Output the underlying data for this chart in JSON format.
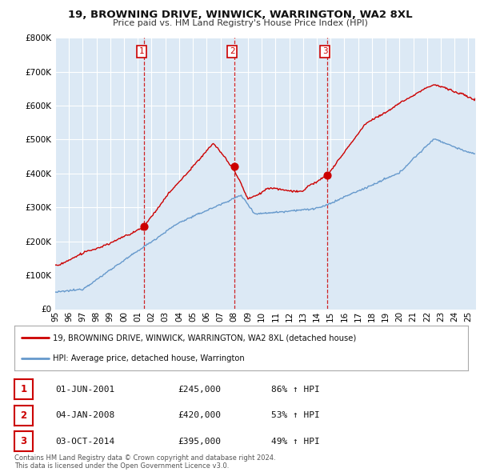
{
  "title": "19, BROWNING DRIVE, WINWICK, WARRINGTON, WA2 8XL",
  "subtitle": "Price paid vs. HM Land Registry's House Price Index (HPI)",
  "legend_label_red": "19, BROWNING DRIVE, WINWICK, WARRINGTON, WA2 8XL (detached house)",
  "legend_label_blue": "HPI: Average price, detached house, Warrington",
  "footer": "Contains HM Land Registry data © Crown copyright and database right 2024.\nThis data is licensed under the Open Government Licence v3.0.",
  "transactions": [
    {
      "num": 1,
      "date": "01-JUN-2001",
      "price": 245000,
      "pct": "86%",
      "dir": "↑",
      "year": 2001.42
    },
    {
      "num": 2,
      "date": "04-JAN-2008",
      "price": 420000,
      "pct": "53%",
      "dir": "↑",
      "year": 2008.01
    },
    {
      "num": 3,
      "date": "03-OCT-2014",
      "price": 395000,
      "pct": "49%",
      "dir": "↑",
      "year": 2014.75
    }
  ],
  "ylim": [
    0,
    800000
  ],
  "yticks": [
    0,
    100000,
    200000,
    300000,
    400000,
    500000,
    600000,
    700000,
    800000
  ],
  "xlim_start": 1995.0,
  "xlim_end": 2025.5,
  "red_color": "#cc0000",
  "blue_color": "#6699cc",
  "fill_color": "#dce9f5",
  "dashed_color": "#cc0000",
  "background_color": "#ffffff",
  "grid_color": "#c8d8e8"
}
